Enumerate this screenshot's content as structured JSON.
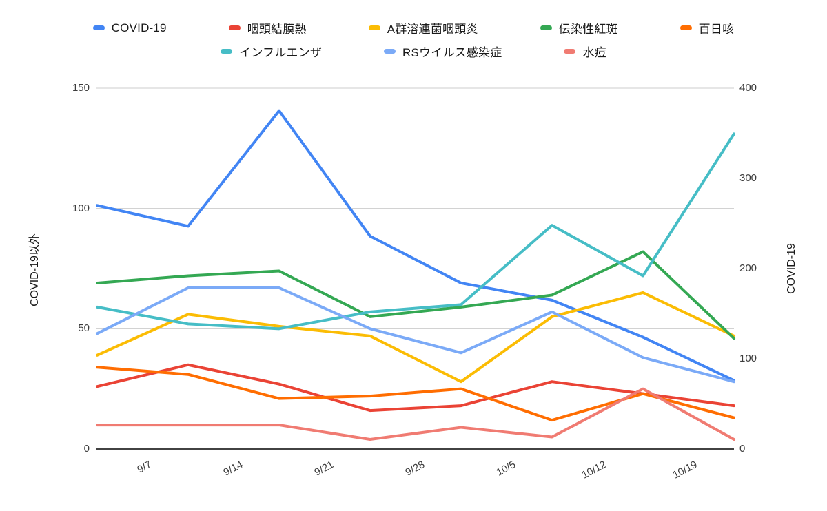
{
  "chart_data": {
    "type": "line",
    "title": "",
    "x_tick_labels": [
      "9/7",
      "9/14",
      "9/21",
      "9/28",
      "10/5",
      "10/12",
      "10/19"
    ],
    "x_points_count": 8,
    "x_tick_offset_weeks": 0.485,
    "x_note": "8 weekly data points; date tick labels sit midway between consecutive points",
    "left_axis": {
      "title": "COVID-19以外",
      "ticks": [
        0,
        50,
        100,
        150
      ],
      "range": [
        0,
        150
      ]
    },
    "right_axis": {
      "title": "COVID-19",
      "ticks": [
        0,
        100,
        200,
        300,
        400
      ],
      "range": [
        0,
        400
      ]
    },
    "grid": "horizontal-only",
    "legend_position": "top",
    "series": [
      {
        "name": "COVID-19",
        "color": "#4285F4",
        "axis": "right",
        "values": [
          270,
          247,
          375,
          236,
          184,
          165,
          124,
          76
        ]
      },
      {
        "name": "咽頭結膜熱",
        "color": "#EA4335",
        "axis": "left",
        "values": [
          26,
          35,
          27,
          16,
          18,
          28,
          23,
          18
        ]
      },
      {
        "name": "A群溶連菌咽頭炎",
        "color": "#FBBC04",
        "axis": "left",
        "values": [
          39,
          56,
          51,
          47,
          28,
          55,
          65,
          47
        ]
      },
      {
        "name": "伝染性紅斑",
        "color": "#34A853",
        "axis": "left",
        "values": [
          69,
          72,
          74,
          55,
          59,
          64,
          82,
          46
        ]
      },
      {
        "name": "百日咳",
        "color": "#FF6D01",
        "axis": "left",
        "values": [
          34,
          31,
          21,
          22,
          25,
          12,
          23,
          13
        ]
      },
      {
        "name": "インフルエンザ",
        "color": "#46BDC6",
        "axis": "left",
        "values": [
          59,
          52,
          50,
          57,
          60,
          93,
          72,
          131
        ]
      },
      {
        "name": "RSウイルス感染症",
        "color": "#7BAAF7",
        "axis": "left",
        "values": [
          48,
          67,
          67,
          50,
          40,
          57,
          38,
          28
        ]
      },
      {
        "name": "水痘",
        "color": "#F07B72",
        "axis": "left",
        "values": [
          10,
          10,
          10,
          4,
          9,
          5,
          25,
          4
        ]
      }
    ],
    "legend_rows": [
      [
        0,
        1,
        2,
        3,
        4
      ],
      [
        5,
        6,
        7
      ]
    ],
    "gridline_color": "#cccccc",
    "baseline_color": "#424242"
  }
}
